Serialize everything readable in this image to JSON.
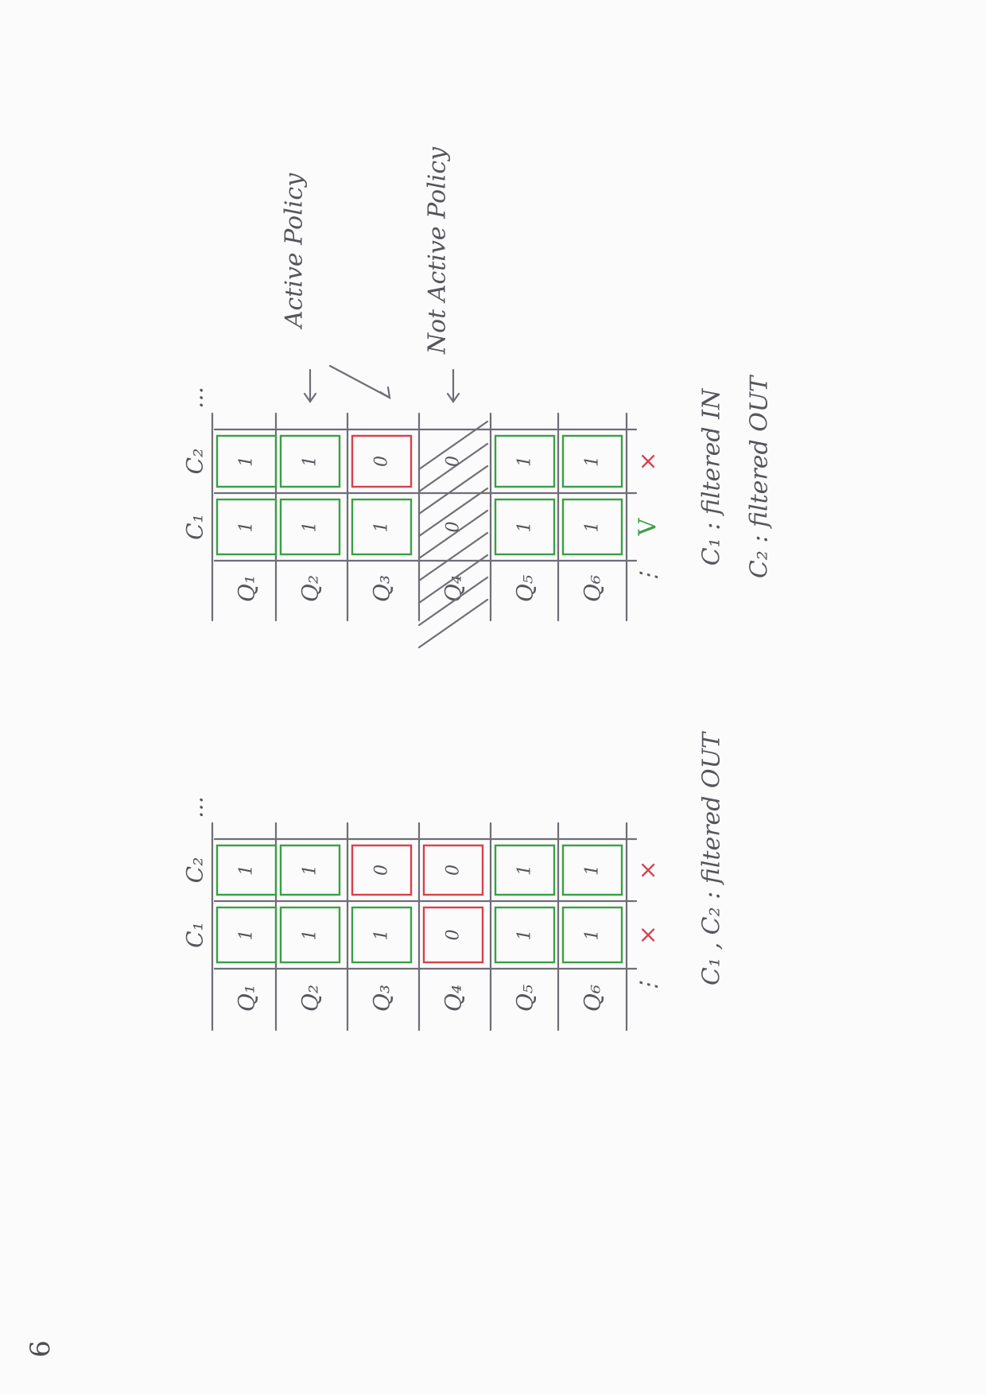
{
  "page_number": "6",
  "colors": {
    "ink": "#6e6e76",
    "pass": "#3aa046",
    "fail": "#d8414b"
  },
  "columns": [
    "C₁",
    "C₂"
  ],
  "columns_more": "…",
  "rows_more": "⋮",
  "diagrams": [
    {
      "id": "left",
      "rows": [
        {
          "label": "Q₁",
          "values": [
            "1",
            "1"
          ],
          "states": [
            "pass",
            "pass"
          ],
          "hatched": false
        },
        {
          "label": "Q₂",
          "values": [
            "1",
            "1"
          ],
          "states": [
            "pass",
            "pass"
          ],
          "hatched": false
        },
        {
          "label": "Q₃",
          "values": [
            "1",
            "0"
          ],
          "states": [
            "pass",
            "fail"
          ],
          "hatched": false
        },
        {
          "label": "Q₄",
          "values": [
            "0",
            "0"
          ],
          "states": [
            "fail",
            "fail"
          ],
          "hatched": false
        },
        {
          "label": "Q₅",
          "values": [
            "1",
            "1"
          ],
          "states": [
            "pass",
            "pass"
          ],
          "hatched": false
        },
        {
          "label": "Q₆",
          "values": [
            "1",
            "1"
          ],
          "states": [
            "pass",
            "pass"
          ],
          "hatched": false
        }
      ],
      "results": [
        {
          "mark": "×",
          "state": "fail"
        },
        {
          "mark": "×",
          "state": "fail"
        }
      ],
      "notes": [
        "C₁ , C₂ : filtered OUT"
      ],
      "arrows": []
    },
    {
      "id": "right",
      "rows": [
        {
          "label": "Q₁",
          "values": [
            "1",
            "1"
          ],
          "states": [
            "pass",
            "pass"
          ],
          "hatched": false
        },
        {
          "label": "Q₂",
          "values": [
            "1",
            "1"
          ],
          "states": [
            "pass",
            "pass"
          ],
          "hatched": false
        },
        {
          "label": "Q₃",
          "values": [
            "1",
            "0"
          ],
          "states": [
            "pass",
            "fail"
          ],
          "hatched": false
        },
        {
          "label": "Q₄",
          "values": [
            "0",
            "0"
          ],
          "states": [
            "none",
            "none"
          ],
          "hatched": true
        },
        {
          "label": "Q₅",
          "values": [
            "1",
            "1"
          ],
          "states": [
            "pass",
            "pass"
          ],
          "hatched": false
        },
        {
          "label": "Q₆",
          "values": [
            "1",
            "1"
          ],
          "states": [
            "pass",
            "pass"
          ],
          "hatched": false
        }
      ],
      "results": [
        {
          "mark": "V",
          "state": "pass"
        },
        {
          "mark": "×",
          "state": "fail"
        }
      ],
      "notes": [
        "C₁ : filtered IN",
        "C₂ : filtered OUT"
      ],
      "arrows": [
        {
          "label": "Active Policy",
          "rows": [
            1,
            2
          ]
        },
        {
          "label": "Not Active Policy",
          "rows": [
            3
          ]
        }
      ]
    }
  ]
}
